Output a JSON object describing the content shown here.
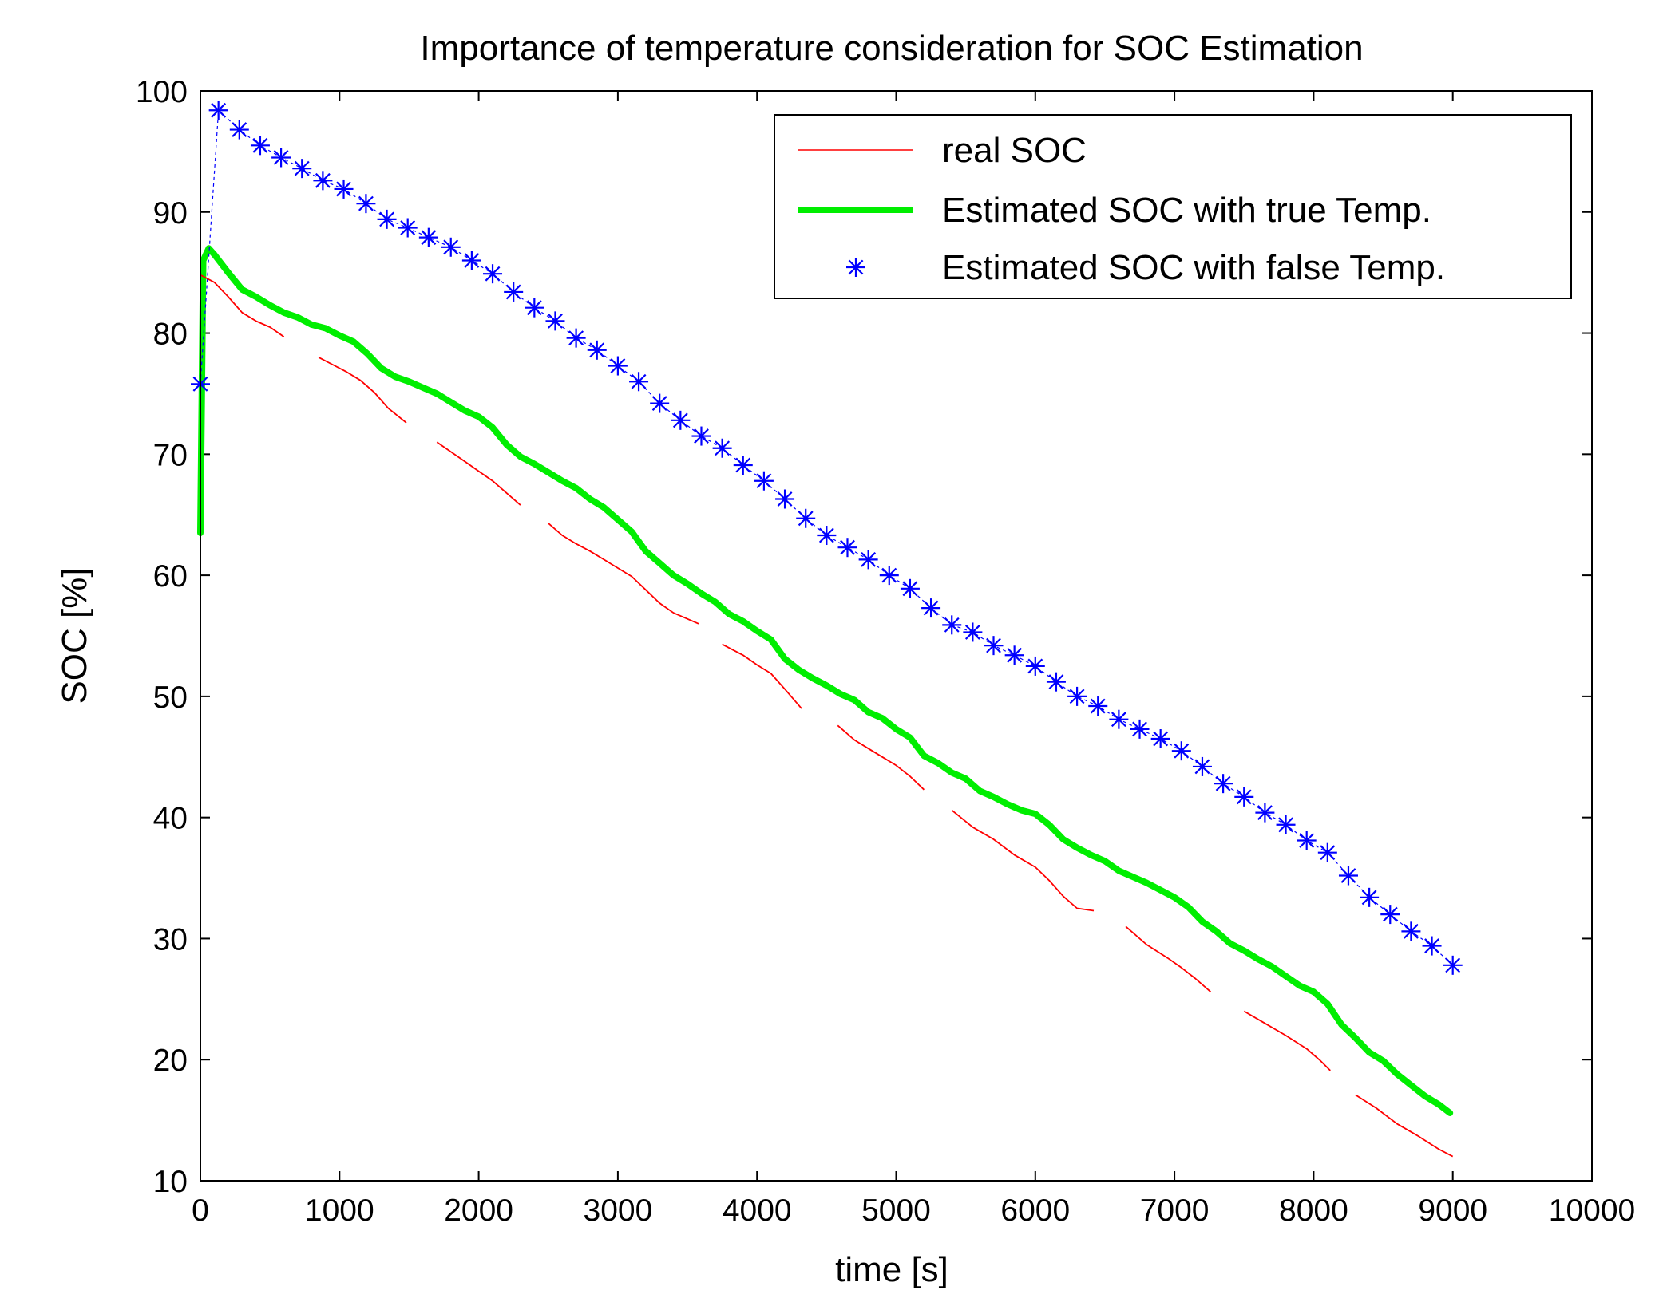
{
  "chart_data": {
    "type": "line",
    "title": "Importance of temperature consideration for SOC Estimation",
    "xlabel": "time [s]",
    "ylabel": "SOC [%]",
    "xlim": [
      0,
      10000
    ],
    "ylim": [
      10,
      100
    ],
    "xticks": [
      0,
      1000,
      2000,
      3000,
      4000,
      5000,
      6000,
      7000,
      8000,
      9000,
      10000
    ],
    "yticks": [
      10,
      20,
      30,
      40,
      50,
      60,
      70,
      80,
      90,
      100
    ],
    "xtick_labels": [
      "0",
      "1000",
      "2000",
      "3000",
      "4000",
      "5000",
      "6000",
      "7000",
      "8000",
      "9000",
      "10000"
    ],
    "ytick_labels": [
      "10",
      "20",
      "30",
      "40",
      "50",
      "60",
      "70",
      "80",
      "90",
      "100"
    ],
    "grid": false,
    "legend_position": "top-right",
    "series": [
      {
        "name": "real SOC",
        "color": "#ff0000",
        "style": "thin-line",
        "segments": [
          [
            [
              0,
              84.8
            ],
            [
              100,
              84.2
            ],
            [
              200,
              83.0
            ],
            [
              300,
              81.7
            ],
            [
              400,
              81.0
            ],
            [
              500,
              80.5
            ],
            [
              600,
              79.7
            ]
          ],
          [
            [
              850,
              78.0
            ],
            [
              950,
              77.4
            ],
            [
              1050,
              76.8
            ],
            [
              1150,
              76.1
            ],
            [
              1250,
              75.1
            ],
            [
              1350,
              73.8
            ],
            [
              1480,
              72.6
            ]
          ],
          [
            [
              1700,
              71.0
            ],
            [
              1800,
              70.2
            ],
            [
              1900,
              69.4
            ],
            [
              2000,
              68.6
            ],
            [
              2100,
              67.8
            ],
            [
              2200,
              66.8
            ],
            [
              2300,
              65.8
            ]
          ],
          [
            [
              2500,
              64.3
            ],
            [
              2600,
              63.3
            ],
            [
              2700,
              62.6
            ],
            [
              2800,
              62.0
            ],
            [
              2900,
              61.3
            ],
            [
              3000,
              60.6
            ],
            [
              3100,
              59.9
            ],
            [
              3200,
              58.8
            ],
            [
              3300,
              57.7
            ],
            [
              3400,
              56.9
            ],
            [
              3580,
              56.0
            ]
          ],
          [
            [
              3750,
              54.3
            ],
            [
              3900,
              53.4
            ],
            [
              4000,
              52.6
            ],
            [
              4100,
              51.9
            ],
            [
              4200,
              50.6
            ],
            [
              4320,
              49.0
            ]
          ],
          [
            [
              4580,
              47.6
            ],
            [
              4700,
              46.4
            ],
            [
              4800,
              45.7
            ],
            [
              4900,
              45.0
            ],
            [
              5000,
              44.3
            ],
            [
              5100,
              43.4
            ],
            [
              5200,
              42.3
            ]
          ],
          [
            [
              5400,
              40.6
            ],
            [
              5550,
              39.2
            ],
            [
              5700,
              38.2
            ],
            [
              5850,
              36.9
            ],
            [
              6000,
              35.9
            ],
            [
              6100,
              34.8
            ],
            [
              6200,
              33.5
            ],
            [
              6300,
              32.5
            ],
            [
              6420,
              32.3
            ]
          ],
          [
            [
              6650,
              31.0
            ],
            [
              6800,
              29.5
            ],
            [
              6950,
              28.4
            ],
            [
              7050,
              27.6
            ],
            [
              7150,
              26.7
            ],
            [
              7260,
              25.6
            ]
          ],
          [
            [
              7500,
              24.0
            ],
            [
              7650,
              23.0
            ],
            [
              7800,
              22.0
            ],
            [
              7950,
              20.9
            ],
            [
              8050,
              19.9
            ],
            [
              8120,
              19.1
            ]
          ],
          [
            [
              8300,
              17.1
            ],
            [
              8450,
              16.0
            ],
            [
              8600,
              14.7
            ],
            [
              8750,
              13.7
            ],
            [
              8900,
              12.6
            ],
            [
              9000,
              12.0
            ]
          ]
        ]
      },
      {
        "name": "Estimated SOC with true Temp.",
        "color": "#00ee00",
        "style": "thick-line",
        "points": [
          [
            0,
            63.5
          ],
          [
            20,
            86.0
          ],
          [
            60,
            87.0
          ],
          [
            100,
            86.5
          ],
          [
            200,
            85.0
          ],
          [
            300,
            83.6
          ],
          [
            400,
            83.0
          ],
          [
            500,
            82.3
          ],
          [
            600,
            81.7
          ],
          [
            700,
            81.3
          ],
          [
            800,
            80.7
          ],
          [
            900,
            80.4
          ],
          [
            1000,
            79.8
          ],
          [
            1100,
            79.3
          ],
          [
            1200,
            78.3
          ],
          [
            1300,
            77.1
          ],
          [
            1400,
            76.4
          ],
          [
            1500,
            76.0
          ],
          [
            1600,
            75.5
          ],
          [
            1700,
            75.0
          ],
          [
            1800,
            74.3
          ],
          [
            1900,
            73.6
          ],
          [
            2000,
            73.1
          ],
          [
            2100,
            72.2
          ],
          [
            2200,
            70.8
          ],
          [
            2300,
            69.8
          ],
          [
            2400,
            69.2
          ],
          [
            2500,
            68.5
          ],
          [
            2600,
            67.8
          ],
          [
            2700,
            67.2
          ],
          [
            2800,
            66.3
          ],
          [
            2900,
            65.6
          ],
          [
            3000,
            64.6
          ],
          [
            3100,
            63.6
          ],
          [
            3200,
            62.0
          ],
          [
            3300,
            61.0
          ],
          [
            3400,
            60.0
          ],
          [
            3500,
            59.3
          ],
          [
            3600,
            58.5
          ],
          [
            3700,
            57.8
          ],
          [
            3800,
            56.8
          ],
          [
            3900,
            56.2
          ],
          [
            4000,
            55.4
          ],
          [
            4100,
            54.7
          ],
          [
            4200,
            53.1
          ],
          [
            4300,
            52.2
          ],
          [
            4400,
            51.5
          ],
          [
            4500,
            50.9
          ],
          [
            4600,
            50.2
          ],
          [
            4700,
            49.7
          ],
          [
            4800,
            48.7
          ],
          [
            4900,
            48.2
          ],
          [
            5000,
            47.3
          ],
          [
            5100,
            46.6
          ],
          [
            5200,
            45.1
          ],
          [
            5300,
            44.5
          ],
          [
            5400,
            43.7
          ],
          [
            5500,
            43.2
          ],
          [
            5600,
            42.2
          ],
          [
            5700,
            41.7
          ],
          [
            5800,
            41.1
          ],
          [
            5900,
            40.6
          ],
          [
            6000,
            40.3
          ],
          [
            6100,
            39.4
          ],
          [
            6200,
            38.2
          ],
          [
            6300,
            37.5
          ],
          [
            6400,
            36.9
          ],
          [
            6500,
            36.4
          ],
          [
            6600,
            35.6
          ],
          [
            6700,
            35.1
          ],
          [
            6800,
            34.6
          ],
          [
            6900,
            34.0
          ],
          [
            7000,
            33.4
          ],
          [
            7100,
            32.6
          ],
          [
            7200,
            31.4
          ],
          [
            7300,
            30.6
          ],
          [
            7400,
            29.6
          ],
          [
            7500,
            29.0
          ],
          [
            7600,
            28.3
          ],
          [
            7700,
            27.7
          ],
          [
            7800,
            26.9
          ],
          [
            7900,
            26.1
          ],
          [
            8000,
            25.6
          ],
          [
            8100,
            24.6
          ],
          [
            8200,
            22.9
          ],
          [
            8300,
            21.8
          ],
          [
            8400,
            20.6
          ],
          [
            8500,
            19.9
          ],
          [
            8600,
            18.8
          ],
          [
            8700,
            17.9
          ],
          [
            8800,
            17.0
          ],
          [
            8900,
            16.3
          ],
          [
            8980,
            15.6
          ]
        ]
      },
      {
        "name": "Estimated SOC with false Temp.",
        "color": "#0000ff",
        "style": "asterisk-markers",
        "points": [
          [
            0,
            75.8
          ],
          [
            130,
            98.4
          ],
          [
            280,
            96.8
          ],
          [
            430,
            95.5
          ],
          [
            580,
            94.5
          ],
          [
            730,
            93.6
          ],
          [
            880,
            92.6
          ],
          [
            1030,
            91.9
          ],
          [
            1190,
            90.7
          ],
          [
            1340,
            89.4
          ],
          [
            1490,
            88.7
          ],
          [
            1640,
            87.9
          ],
          [
            1800,
            87.1
          ],
          [
            1950,
            86.0
          ],
          [
            2100,
            84.9
          ],
          [
            2250,
            83.4
          ],
          [
            2400,
            82.1
          ],
          [
            2550,
            81.0
          ],
          [
            2700,
            79.6
          ],
          [
            2850,
            78.6
          ],
          [
            3000,
            77.3
          ],
          [
            3150,
            76.0
          ],
          [
            3300,
            74.2
          ],
          [
            3450,
            72.8
          ],
          [
            3600,
            71.5
          ],
          [
            3750,
            70.5
          ],
          [
            3900,
            69.1
          ],
          [
            4050,
            67.8
          ],
          [
            4200,
            66.3
          ],
          [
            4350,
            64.7
          ],
          [
            4500,
            63.3
          ],
          [
            4650,
            62.3
          ],
          [
            4800,
            61.3
          ],
          [
            4950,
            60.0
          ],
          [
            5100,
            58.9
          ],
          [
            5250,
            57.3
          ],
          [
            5400,
            55.9
          ],
          [
            5550,
            55.3
          ],
          [
            5700,
            54.2
          ],
          [
            5850,
            53.4
          ],
          [
            6000,
            52.5
          ],
          [
            6150,
            51.2
          ],
          [
            6300,
            50.0
          ],
          [
            6450,
            49.2
          ],
          [
            6600,
            48.1
          ],
          [
            6750,
            47.3
          ],
          [
            6900,
            46.5
          ],
          [
            7050,
            45.5
          ],
          [
            7200,
            44.2
          ],
          [
            7350,
            42.8
          ],
          [
            7500,
            41.7
          ],
          [
            7650,
            40.4
          ],
          [
            7800,
            39.4
          ],
          [
            7950,
            38.1
          ],
          [
            8100,
            37.1
          ],
          [
            8250,
            35.2
          ],
          [
            8400,
            33.4
          ],
          [
            8550,
            32.0
          ],
          [
            8700,
            30.6
          ],
          [
            8850,
            29.4
          ],
          [
            9000,
            27.8
          ]
        ]
      }
    ]
  }
}
